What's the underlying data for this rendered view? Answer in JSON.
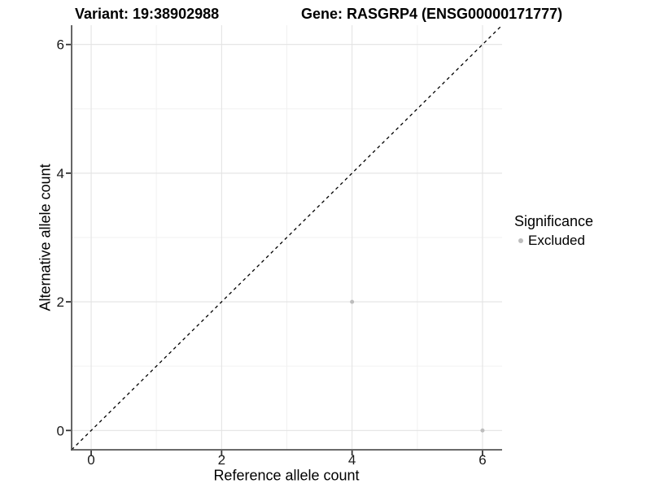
{
  "titles": {
    "left": "Variant: 19:38902988",
    "right": "Gene: RASGRP4 (ENSG00000171777)"
  },
  "legend": {
    "title": "Significance",
    "items": [
      {
        "label": "Excluded",
        "marker": "circle",
        "color": "#bdbdbd"
      }
    ]
  },
  "chart_data": {
    "type": "scatter",
    "title": "Variant: 19:38902988 / Gene: RASGRP4 (ENSG00000171777)",
    "xlabel": "Reference allele count",
    "ylabel": "Alternative allele count",
    "xlim": [
      -0.3,
      6.3
    ],
    "ylim": [
      -0.3,
      6.3
    ],
    "x_ticks": [
      0,
      2,
      4,
      6
    ],
    "x_tick_labels": [
      "0",
      "2",
      "4",
      "6"
    ],
    "y_ticks": [
      0,
      2,
      4,
      6
    ],
    "y_tick_labels": [
      "0",
      "2",
      "4",
      "6"
    ],
    "x_minor_gridlines": [
      1,
      3,
      5
    ],
    "y_minor_gridlines": [
      1,
      3,
      5
    ],
    "grid": "major+minor",
    "legend_position": "right-center",
    "series": [
      {
        "name": "Excluded",
        "marker": "circle",
        "color": "#bdbdbd",
        "points": [
          {
            "x": 4,
            "y": 2
          },
          {
            "x": 6,
            "y": 0
          }
        ]
      }
    ],
    "reference_line": {
      "slope": 1,
      "intercept": 0,
      "style": "dashed",
      "color": "#000000"
    }
  },
  "colors": {
    "background": "#ffffff",
    "grid_major": "#e3e3e3",
    "grid_minor": "#f1f1f1",
    "axis_line": "#555555",
    "tick_mark": "#333333",
    "tick_label": "#1a1a1a",
    "point": "#bdbdbd"
  }
}
